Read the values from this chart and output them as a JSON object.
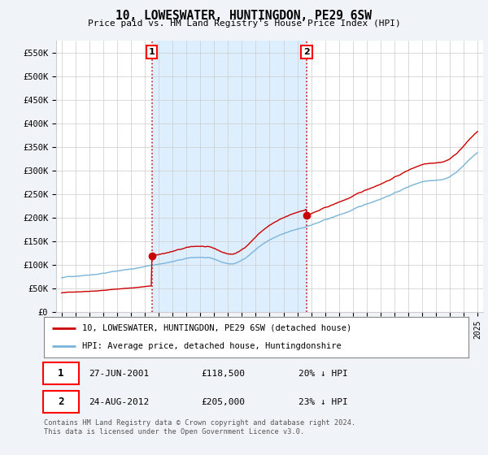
{
  "title": "10, LOWESWATER, HUNTINGDON, PE29 6SW",
  "subtitle": "Price paid vs. HM Land Registry's House Price Index (HPI)",
  "legend_line1": "10, LOWESWATER, HUNTINGDON, PE29 6SW (detached house)",
  "legend_line2": "HPI: Average price, detached house, Huntingdonshire",
  "annotation1_date": "27-JUN-2001",
  "annotation1_price": "£118,500",
  "annotation1_hpi": "20% ↓ HPI",
  "annotation2_date": "24-AUG-2012",
  "annotation2_price": "£205,000",
  "annotation2_hpi": "23% ↓ HPI",
  "footer": "Contains HM Land Registry data © Crown copyright and database right 2024.\nThis data is licensed under the Open Government Licence v3.0.",
  "hpi_color": "#7ab4d8",
  "price_color": "#cc0000",
  "annotation_color": "#cc0000",
  "shade_color": "#ddeeff",
  "ylim": [
    0,
    575000
  ],
  "yticks": [
    0,
    50000,
    100000,
    150000,
    200000,
    250000,
    300000,
    350000,
    400000,
    450000,
    500000,
    550000
  ],
  "ytick_labels": [
    "£0",
    "£50K",
    "£100K",
    "£150K",
    "£200K",
    "£250K",
    "£300K",
    "£350K",
    "£400K",
    "£450K",
    "£500K",
    "£550K"
  ],
  "background_color": "#f0f4f8",
  "plot_bg_color": "#ffffff",
  "t1_year": 2001.5,
  "t2_year": 2012.667,
  "sale1_price": 118500,
  "sale2_price": 205000
}
